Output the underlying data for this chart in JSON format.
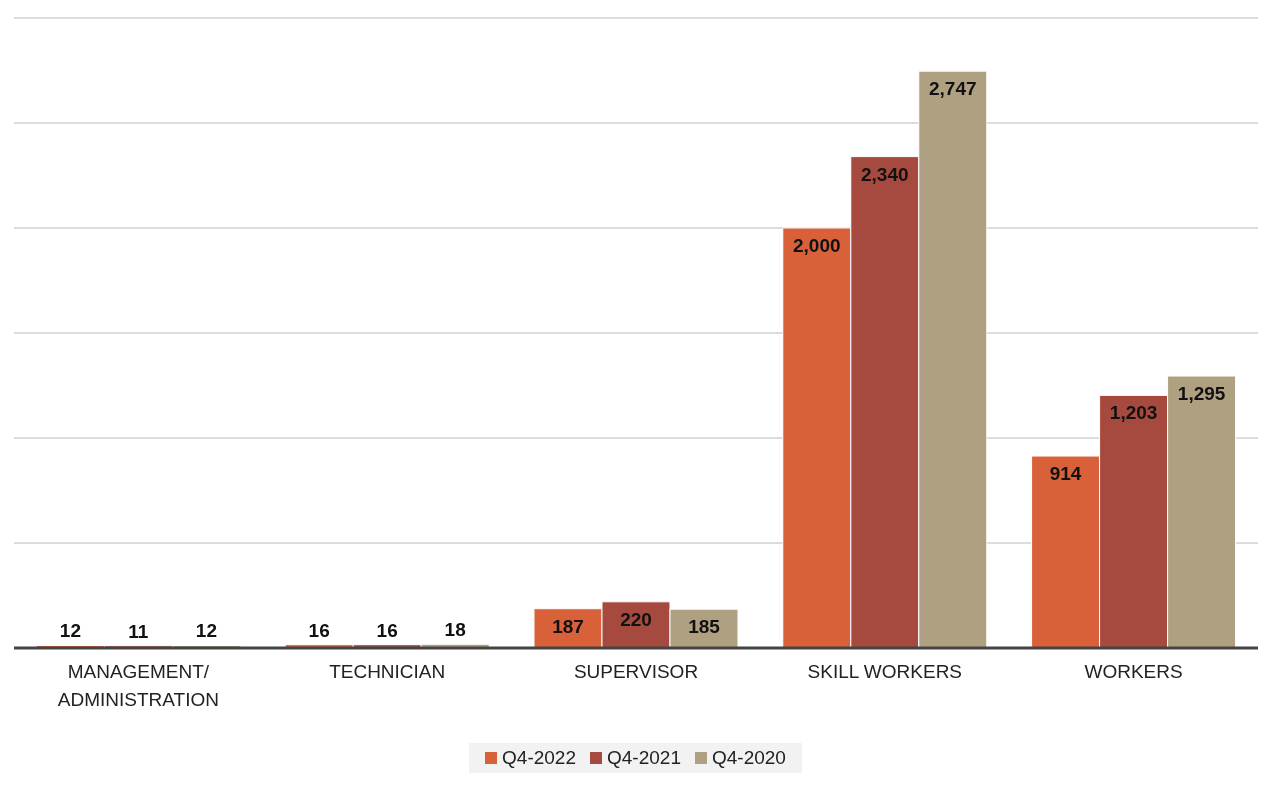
{
  "chart_data": {
    "type": "bar",
    "categories": [
      "MANAGEMENT/ ADMINISTRATION",
      "TECHNICIAN",
      "SUPERVISOR",
      "SKILL WORKERS",
      "WORKERS"
    ],
    "series": [
      {
        "name": "Q4-2022",
        "color": "#d9613a",
        "values": [
          12,
          16,
          187,
          2000,
          914
        ],
        "value_labels": [
          "12",
          "16",
          "187",
          "2,000",
          "914"
        ]
      },
      {
        "name": "Q4-2021",
        "color": "#a64a40",
        "values": [
          11,
          16,
          220,
          2340,
          1203
        ],
        "value_labels": [
          "11",
          "16",
          "220",
          "2,340",
          "1,203"
        ]
      },
      {
        "name": "Q4-2020",
        "color": "#b0a082",
        "values": [
          12,
          18,
          185,
          2747,
          1295
        ],
        "value_labels": [
          "12",
          "18",
          "185",
          "2,747",
          "1,295"
        ]
      }
    ],
    "tick_labels": "x",
    "grid": "y",
    "legend": "bottom"
  }
}
